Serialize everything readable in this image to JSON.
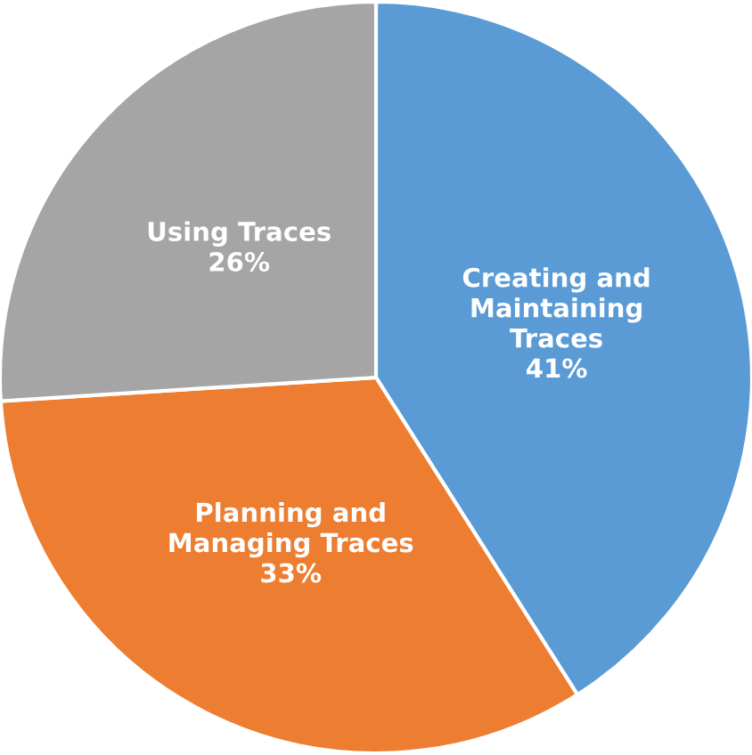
{
  "chart_data": {
    "type": "pie",
    "categories": [
      "Creating and\nMaintaining\nTraces",
      "Planning and\nManaging Traces",
      "Using Traces"
    ],
    "values": [
      41,
      33,
      26
    ],
    "colors": [
      "#5b9bd5",
      "#ed7d31",
      "#a5a5a5"
    ],
    "value_labels": [
      "41%",
      "33%",
      "26%"
    ]
  }
}
